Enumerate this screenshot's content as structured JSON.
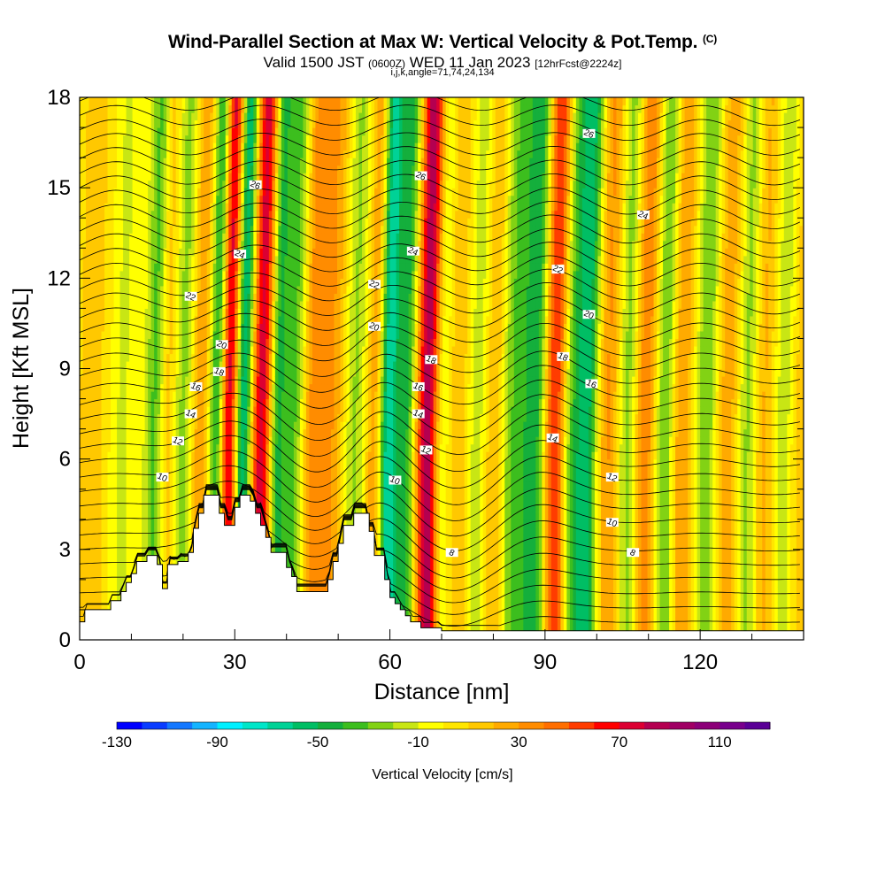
{
  "header": {
    "title": "Wind-Parallel Section at Max W: Vertical Velocity & Pot.Temp.",
    "copyright": "(C)",
    "valid_prefix": "Valid 1500 JST",
    "valid_utc": "(0600Z)",
    "valid_date": "WED 11 Jan 2023",
    "forecast": "[12hrFcst@2224z]",
    "indices": "i,j,k,angle=71,74,24,134"
  },
  "chart_data": {
    "type": "heatmap",
    "xlabel": "Distance [nm]",
    "ylabel": "Height [Kft MSL]",
    "xlim": [
      0,
      140
    ],
    "ylim": [
      0,
      18
    ],
    "x_ticks": [
      0,
      30,
      60,
      90,
      120
    ],
    "y_ticks": [
      0,
      3,
      6,
      9,
      12,
      15,
      18
    ],
    "colorbar": {
      "label": "Vertical Velocity [cm/s]",
      "min": -130,
      "max": 130,
      "step": 10,
      "tick_labels": [
        -130,
        -90,
        -50,
        -10,
        30,
        70,
        110
      ],
      "colors": [
        "#0000ff",
        "#0a3cff",
        "#1478ff",
        "#14b4ff",
        "#00f0ff",
        "#00e6c8",
        "#00d296",
        "#00be64",
        "#14af3c",
        "#3cbe1e",
        "#82d214",
        "#c8e614",
        "#ffff00",
        "#ffe600",
        "#ffc800",
        "#ffaa00",
        "#ff8c00",
        "#ff6e00",
        "#ff3c00",
        "#ff0000",
        "#dc0032",
        "#b40050",
        "#a00064",
        "#8c0078",
        "#78008c",
        "#5a0096"
      ]
    },
    "vertical_velocity_bands": [
      {
        "x": 2,
        "w": 2.0,
        "amp": 12
      },
      {
        "x": 8,
        "w": 1.6,
        "amp": -15
      },
      {
        "x": 14.5,
        "w": 1.5,
        "amp": -40
      },
      {
        "x": 16.5,
        "w": 1.3,
        "amp": 25
      },
      {
        "x": 20,
        "w": 1.6,
        "amp": -30
      },
      {
        "x": 23,
        "w": 1.5,
        "amp": 30
      },
      {
        "x": 26.5,
        "w": 1.2,
        "amp": -65
      },
      {
        "x": 28.5,
        "w": 1.3,
        "amp": 85
      },
      {
        "x": 31.5,
        "w": 1.2,
        "amp": -70
      },
      {
        "x": 35,
        "w": 1.5,
        "amp": 75
      },
      {
        "x": 38,
        "w": 1.2,
        "amp": -50
      },
      {
        "x": 41.5,
        "w": 1.5,
        "amp": -40
      },
      {
        "x": 45,
        "w": 2.0,
        "amp": 35
      },
      {
        "x": 49,
        "w": 1.6,
        "amp": 22
      },
      {
        "x": 53,
        "w": 1.6,
        "amp": -25
      },
      {
        "x": 57,
        "w": 1.3,
        "amp": 30
      },
      {
        "x": 59.5,
        "w": 1.3,
        "amp": -75
      },
      {
        "x": 63,
        "w": 1.3,
        "amp": -45
      },
      {
        "x": 67,
        "w": 1.5,
        "amp": 85
      },
      {
        "x": 70,
        "w": 1.2,
        "amp": -20
      },
      {
        "x": 73,
        "w": 1.6,
        "amp": 18
      },
      {
        "x": 77,
        "w": 1.8,
        "amp": -22
      },
      {
        "x": 80,
        "w": 1.6,
        "amp": 28
      },
      {
        "x": 83,
        "w": 1.8,
        "amp": -30
      },
      {
        "x": 88,
        "w": 2.2,
        "amp": -55
      },
      {
        "x": 91.5,
        "w": 1.6,
        "amp": 75
      },
      {
        "x": 95,
        "w": 1.6,
        "amp": -35
      },
      {
        "x": 98,
        "w": 1.5,
        "amp": -55
      },
      {
        "x": 102,
        "w": 1.6,
        "amp": 30
      },
      {
        "x": 106,
        "w": 1.5,
        "amp": -35
      },
      {
        "x": 109,
        "w": 1.8,
        "amp": 40
      },
      {
        "x": 113,
        "w": 1.5,
        "amp": -40
      },
      {
        "x": 116,
        "w": 1.6,
        "amp": 30
      },
      {
        "x": 121,
        "w": 1.6,
        "amp": -35
      },
      {
        "x": 125,
        "w": 1.8,
        "amp": 25
      },
      {
        "x": 129,
        "w": 1.5,
        "amp": -30
      },
      {
        "x": 132,
        "w": 1.6,
        "amp": 22
      },
      {
        "x": 136,
        "w": 1.6,
        "amp": -22
      },
      {
        "x": 139,
        "w": 1.5,
        "amp": 15
      }
    ],
    "terrain": [
      [
        0,
        0.6
      ],
      [
        1,
        0.6
      ],
      [
        1,
        1
      ],
      [
        6,
        1
      ],
      [
        6,
        1.3
      ],
      [
        8,
        1.3
      ],
      [
        8,
        1.6
      ],
      [
        9,
        1.6
      ],
      [
        9,
        1.9
      ],
      [
        10,
        1.9
      ],
      [
        10,
        2.2
      ],
      [
        11,
        2.2
      ],
      [
        11,
        2.6
      ],
      [
        13,
        2.6
      ],
      [
        13,
        2.8
      ],
      [
        15,
        2.8
      ],
      [
        15,
        2.5
      ],
      [
        16,
        2.5
      ],
      [
        16,
        1.7
      ],
      [
        17,
        1.7
      ],
      [
        17,
        2.5
      ],
      [
        19,
        2.5
      ],
      [
        19,
        2.6
      ],
      [
        21,
        2.6
      ],
      [
        21,
        2.9
      ],
      [
        22,
        2.9
      ],
      [
        22,
        3.7
      ],
      [
        23,
        3.7
      ],
      [
        23,
        4.2
      ],
      [
        24,
        4.2
      ],
      [
        24,
        4.8
      ],
      [
        27,
        4.8
      ],
      [
        27,
        4.2
      ],
      [
        28,
        4.2
      ],
      [
        28,
        3.8
      ],
      [
        30,
        3.8
      ],
      [
        30,
        4.4
      ],
      [
        31,
        4.4
      ],
      [
        31,
        4.8
      ],
      [
        33,
        4.8
      ],
      [
        33,
        4.6
      ],
      [
        34,
        4.6
      ],
      [
        34,
        4.2
      ],
      [
        35,
        4.2
      ],
      [
        35,
        3.8
      ],
      [
        36,
        3.8
      ],
      [
        36,
        3.4
      ],
      [
        37,
        3.4
      ],
      [
        37,
        2.9
      ],
      [
        40,
        2.9
      ],
      [
        40,
        2.4
      ],
      [
        41,
        2.4
      ],
      [
        41,
        2.1
      ],
      [
        42,
        2.1
      ],
      [
        42,
        1.6
      ],
      [
        48,
        1.6
      ],
      [
        48,
        2
      ],
      [
        49,
        2
      ],
      [
        49,
        2.6
      ],
      [
        50,
        2.6
      ],
      [
        50,
        3.2
      ],
      [
        51,
        3.2
      ],
      [
        51,
        3.8
      ],
      [
        53,
        3.8
      ],
      [
        53,
        4.2
      ],
      [
        56,
        4.2
      ],
      [
        56,
        3.6
      ],
      [
        57,
        3.6
      ],
      [
        57,
        2.8
      ],
      [
        59,
        2.8
      ],
      [
        59,
        2
      ],
      [
        60,
        2
      ],
      [
        60,
        1.4
      ],
      [
        61,
        1.4
      ],
      [
        61,
        1.2
      ],
      [
        62,
        1.2
      ],
      [
        62,
        1
      ],
      [
        63,
        1
      ],
      [
        63,
        0.8
      ],
      [
        64,
        0.8
      ],
      [
        64,
        0.6
      ],
      [
        66,
        0.6
      ],
      [
        66,
        0.4
      ],
      [
        70,
        0.4
      ],
      [
        70,
        0.3
      ],
      [
        140,
        0.3
      ],
      [
        140,
        0
      ]
    ],
    "theta_contours": {
      "base_value": 4,
      "interval": 1,
      "labels": [
        {
          "value": 10,
          "x": 16,
          "y": 5.4
        },
        {
          "value": 12,
          "x": 19,
          "y": 6.6
        },
        {
          "value": 14,
          "x": 21.5,
          "y": 7.5
        },
        {
          "value": 16,
          "x": 22.5,
          "y": 8.4
        },
        {
          "value": 18,
          "x": 27,
          "y": 8.9
        },
        {
          "value": 20,
          "x": 27.5,
          "y": 9.8
        },
        {
          "value": 22,
          "x": 21.5,
          "y": 11.4
        },
        {
          "value": 24,
          "x": 31,
          "y": 12.8
        },
        {
          "value": 26,
          "x": 34,
          "y": 15.1
        },
        {
          "value": 10,
          "x": 61,
          "y": 5.3
        },
        {
          "value": 12,
          "x": 67,
          "y": 6.3
        },
        {
          "value": 14,
          "x": 65.5,
          "y": 7.5
        },
        {
          "value": 16,
          "x": 65.5,
          "y": 8.4
        },
        {
          "value": 18,
          "x": 68,
          "y": 9.3
        },
        {
          "value": 20,
          "x": 57,
          "y": 10.4
        },
        {
          "value": 22,
          "x": 57,
          "y": 11.8
        },
        {
          "value": 24,
          "x": 64.5,
          "y": 12.9
        },
        {
          "value": 26,
          "x": 66,
          "y": 15.4
        },
        {
          "value": 8,
          "x": 72,
          "y": 2.9
        },
        {
          "value": 10,
          "x": 103,
          "y": 3.9
        },
        {
          "value": 8,
          "x": 107,
          "y": 2.9
        },
        {
          "value": 12,
          "x": 103,
          "y": 5.4
        },
        {
          "value": 14,
          "x": 91.5,
          "y": 6.7
        },
        {
          "value": 16,
          "x": 99,
          "y": 8.5
        },
        {
          "value": 18,
          "x": 93.5,
          "y": 9.4
        },
        {
          "value": 20,
          "x": 98.5,
          "y": 10.8
        },
        {
          "value": 22,
          "x": 92.5,
          "y": 12.3
        },
        {
          "value": 24,
          "x": 109,
          "y": 14.1
        },
        {
          "value": 26,
          "x": 98.5,
          "y": 16.8
        }
      ]
    }
  }
}
